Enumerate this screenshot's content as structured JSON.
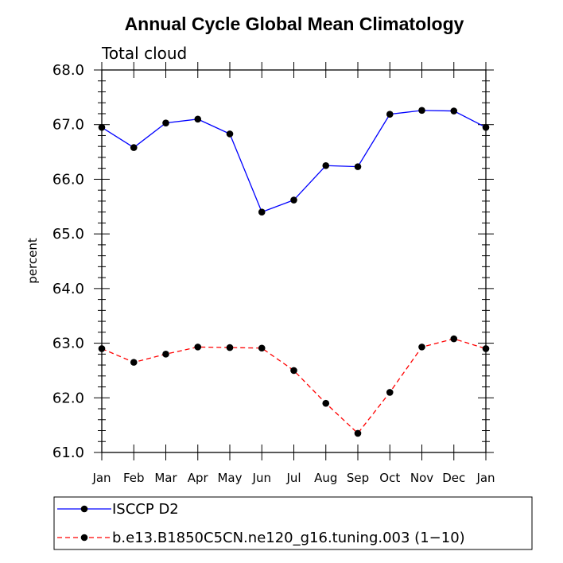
{
  "chart_data": {
    "type": "line",
    "title": "Annual Cycle Global Mean Climatology",
    "subtitle": "Total cloud",
    "xlabel": "",
    "ylabel": "percent",
    "categories": [
      "Jan",
      "Feb",
      "Mar",
      "Apr",
      "May",
      "Jun",
      "Jul",
      "Aug",
      "Sep",
      "Oct",
      "Nov",
      "Dec",
      "Jan"
    ],
    "ylim": [
      61.0,
      68.0
    ],
    "yticks": [
      61.0,
      62.0,
      63.0,
      64.0,
      65.0,
      66.0,
      67.0,
      68.0
    ],
    "ytick_labels": [
      "61.0",
      "62.0",
      "63.0",
      "64.0",
      "65.0",
      "66.0",
      "67.0",
      "68.0"
    ],
    "grid": false,
    "legend_position": "bottom",
    "series": [
      {
        "name": "ISCCP D2",
        "color": "#0000ff",
        "dash": "solid",
        "marker": "circle",
        "values": [
          66.95,
          66.58,
          67.03,
          67.1,
          66.83,
          65.4,
          65.62,
          66.25,
          66.23,
          67.19,
          67.26,
          67.25,
          66.95
        ]
      },
      {
        "name": "b.e13.B1850C5CN.ne120_g16.tuning.003 (1−10)",
        "color": "#ff0000",
        "dash": "dashed",
        "marker": "circle",
        "values": [
          62.9,
          62.65,
          62.8,
          62.93,
          62.92,
          62.91,
          62.5,
          61.9,
          61.35,
          62.1,
          62.93,
          63.08,
          62.9
        ]
      }
    ]
  }
}
